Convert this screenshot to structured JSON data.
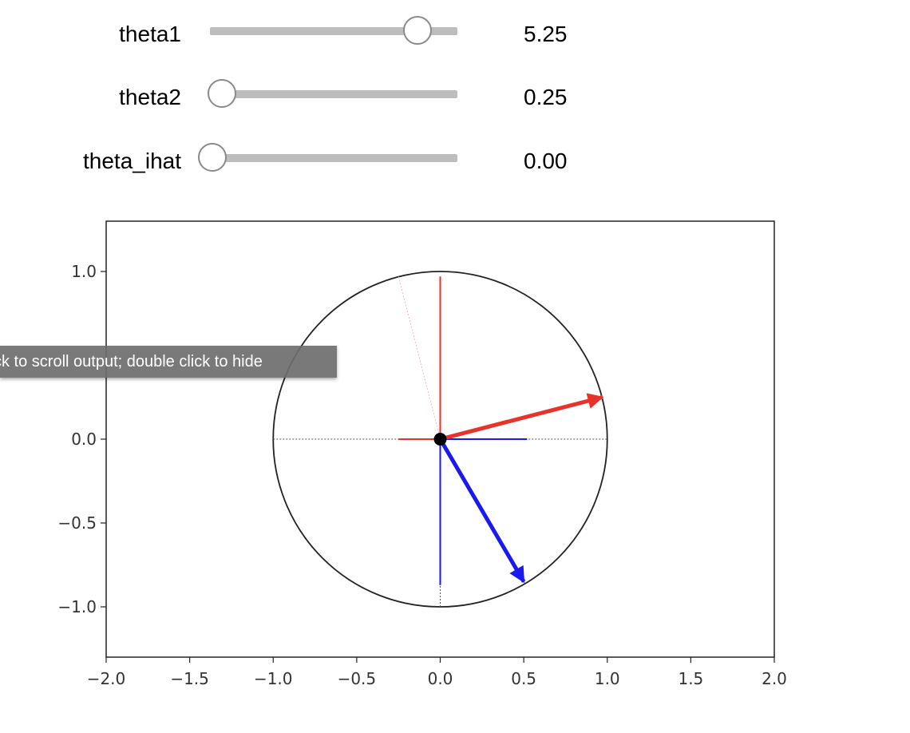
{
  "sliders": [
    {
      "label": "theta1",
      "value_text": "5.25",
      "value": 5.25,
      "min": 0,
      "max": 6.28
    },
    {
      "label": "theta2",
      "value_text": "0.25",
      "value": 0.25,
      "min": 0,
      "max": 6.28
    },
    {
      "label": "theta_ihat",
      "value_text": "0.00",
      "value": 0.0,
      "min": 0,
      "max": 6.28
    }
  ],
  "tooltip": {
    "text": "ck to scroll output; double click to hide"
  },
  "chart_data": {
    "type": "line",
    "xlim": [
      -2.0,
      2.0
    ],
    "ylim": [
      -1.3,
      1.3
    ],
    "x_ticks": [
      "−2.0",
      "−1.5",
      "−1.0",
      "−0.5",
      "0.0",
      "0.5",
      "1.0",
      "1.5",
      "2.0"
    ],
    "x_tick_values": [
      -2.0,
      -1.5,
      -1.0,
      -0.5,
      0.0,
      0.5,
      1.0,
      1.5,
      2.0
    ],
    "y_ticks": [
      "1.0",
      "0.0",
      "−0.5",
      "−1.0"
    ],
    "y_tick_values": [
      1.0,
      0.0,
      -0.5,
      -1.0
    ],
    "grid": false,
    "circle": {
      "center": [
        0,
        0
      ],
      "radius": 1.0,
      "color": "#222222"
    },
    "dashed_lines": [
      {
        "x": [
          -1.0,
          1.0
        ],
        "y": [
          0.0,
          0.0
        ],
        "color": "#555555"
      },
      {
        "x": [
          0.0,
          0.0
        ],
        "y": [
          -1.0,
          -0.85
        ],
        "color": "#555555"
      }
    ],
    "faint_line": {
      "x": [
        0.0,
        -0.25
      ],
      "y": [
        0.0,
        0.97
      ],
      "color": "#f4b8b8"
    },
    "red_axes": [
      {
        "x": [
          -0.25,
          0.0
        ],
        "y": [
          0.0,
          0.0
        ]
      },
      {
        "x": [
          0.0,
          0.0
        ],
        "y": [
          0.0,
          0.97
        ]
      }
    ],
    "blue_axes": [
      {
        "x": [
          0.0,
          0.52
        ],
        "y": [
          0.0,
          0.0
        ]
      },
      {
        "x": [
          0.0,
          0.0
        ],
        "y": [
          0.0,
          -0.87
        ]
      }
    ],
    "arrows": [
      {
        "name": "red-vector",
        "from": [
          0,
          0
        ],
        "to": [
          0.97,
          0.25
        ],
        "color": "#e8332a"
      },
      {
        "name": "blue-vector",
        "from": [
          0,
          0
        ],
        "to": [
          0.5,
          -0.85
        ],
        "color": "#1a1aee"
      }
    ],
    "origin_point": [
      0,
      0
    ]
  }
}
